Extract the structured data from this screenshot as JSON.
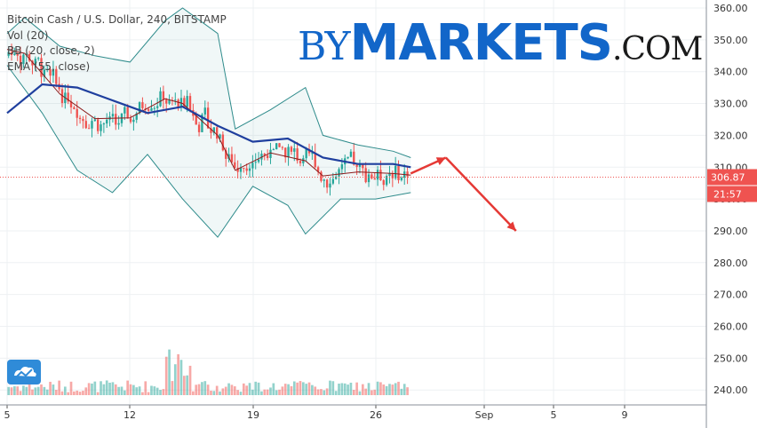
{
  "legend": {
    "symbol_line": "Bitcoin Cash / U.S. Dollar, 240, BITSTAMP",
    "vol": "Vol (20)",
    "bb": "BB (20, close, 2)",
    "ema": "EMA (55, close)"
  },
  "watermark": {
    "prefix": "BY",
    "main": "MARKETS",
    "suffix": ".COM"
  },
  "price_label": "306.87",
  "time_label": "21:57",
  "logo_icon": "tradingview-cloud-icon",
  "colors": {
    "up": "#26a69a",
    "down": "#ef5350",
    "bb": "#2e8b8b",
    "ema": "#1f3f9e",
    "basis": "#8b1a1a",
    "forecast": "#e53935",
    "price_tag": "#ef5350",
    "watermark": "#1266c9"
  },
  "chart_data": {
    "type": "candlestick",
    "title": "Bitcoin Cash / U.S. Dollar, 240, BITSTAMP",
    "xlabel": "",
    "ylabel": "",
    "ylim": [
      237,
      361
    ],
    "x_tick_labels": [
      "5",
      "12",
      "19",
      "26",
      "Sep",
      "5",
      "9"
    ],
    "y_tick_labels": [
      "360.00",
      "350.00",
      "340.00",
      "330.00",
      "320.00",
      "310.00",
      "300.00",
      "290.00",
      "280.00",
      "270.00",
      "260.00",
      "250.00",
      "240.00"
    ],
    "last_price": 306.87,
    "grid": true,
    "indicators": [
      "Vol (20)",
      "BB (20, close, 2)",
      "EMA (55, close)"
    ],
    "ema55": [
      {
        "x": "Aug 5",
        "y": 327
      },
      {
        "x": "Aug 7",
        "y": 336
      },
      {
        "x": "Aug 9",
        "y": 335
      },
      {
        "x": "Aug 11",
        "y": 331
      },
      {
        "x": "Aug 13",
        "y": 327
      },
      {
        "x": "Aug 15",
        "y": 329
      },
      {
        "x": "Aug 17",
        "y": 323
      },
      {
        "x": "Aug 19",
        "y": 318
      },
      {
        "x": "Aug 21",
        "y": 319
      },
      {
        "x": "Aug 23",
        "y": 313
      },
      {
        "x": "Aug 25",
        "y": 311
      },
      {
        "x": "Aug 27",
        "y": 311
      },
      {
        "x": "Aug 28",
        "y": 310
      }
    ],
    "bb_upper": [
      {
        "x": "Aug 5",
        "y": 352
      },
      {
        "x": "Aug 6",
        "y": 357
      },
      {
        "x": "Aug 8",
        "y": 348
      },
      {
        "x": "Aug 10",
        "y": 345
      },
      {
        "x": "Aug 12",
        "y": 343
      },
      {
        "x": "Aug 14",
        "y": 356
      },
      {
        "x": "Aug 15",
        "y": 360
      },
      {
        "x": "Aug 17",
        "y": 352
      },
      {
        "x": "Aug 18",
        "y": 322
      },
      {
        "x": "Aug 20",
        "y": 328
      },
      {
        "x": "Aug 22",
        "y": 335
      },
      {
        "x": "Aug 23",
        "y": 320
      },
      {
        "x": "Aug 25",
        "y": 317
      },
      {
        "x": "Aug 27",
        "y": 315
      },
      {
        "x": "Aug 28",
        "y": 313
      }
    ],
    "bb_lower": [
      {
        "x": "Aug 5",
        "y": 342
      },
      {
        "x": "Aug 7",
        "y": 327
      },
      {
        "x": "Aug 9",
        "y": 309
      },
      {
        "x": "Aug 11",
        "y": 302
      },
      {
        "x": "Aug 13",
        "y": 314
      },
      {
        "x": "Aug 15",
        "y": 300
      },
      {
        "x": "Aug 17",
        "y": 288
      },
      {
        "x": "Aug 19",
        "y": 304
      },
      {
        "x": "Aug 21",
        "y": 298
      },
      {
        "x": "Aug 22",
        "y": 289
      },
      {
        "x": "Aug 24",
        "y": 300
      },
      {
        "x": "Aug 26",
        "y": 300
      },
      {
        "x": "Aug 28",
        "y": 302
      }
    ],
    "forecast_arrows": [
      {
        "from": {
          "x": "Aug 28",
          "y": 308
        },
        "to": {
          "x": "Aug 30",
          "y": 313
        }
      },
      {
        "from": {
          "x": "Aug 30",
          "y": 313
        },
        "to": {
          "x": "Sep 3",
          "y": 290
        }
      }
    ]
  }
}
